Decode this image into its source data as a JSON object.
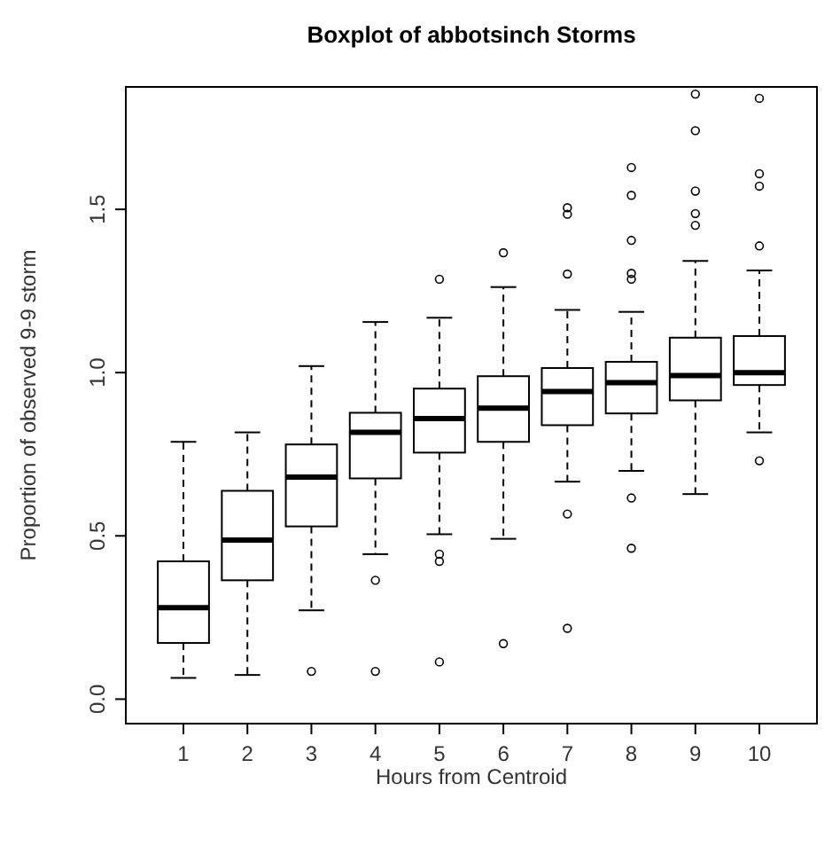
{
  "chart_data": {
    "type": "box",
    "title": "Boxplot of abbotsinch Storms",
    "xlabel": "Hours from Centroid",
    "ylabel": "Proportion of observed 9-9 storm",
    "categories": [
      "1",
      "2",
      "3",
      "4",
      "5",
      "6",
      "7",
      "8",
      "9",
      "10"
    ],
    "ylim": [
      -0.075,
      1.875
    ],
    "yticks": [
      {
        "value": 0,
        "label": "0.0"
      },
      0.5,
      {
        "value": 1,
        "label": "1.0"
      },
      1.5
    ],
    "grid": false,
    "boxes": [
      {
        "low": 0.065,
        "q1": 0.172,
        "median": 0.28,
        "q3": 0.422,
        "high": 0.788
      },
      {
        "low": 0.074,
        "q1": 0.364,
        "median": 0.487,
        "q3": 0.638,
        "high": 0.817
      },
      {
        "low": 0.272,
        "q1": 0.529,
        "median": 0.68,
        "q3": 0.78,
        "high": 1.02,
        "outliers": [
          0.085
        ]
      },
      {
        "low": 0.444,
        "q1": 0.676,
        "median": 0.817,
        "q3": 0.877,
        "high": 1.155,
        "outliers": [
          0.364,
          0.085
        ]
      },
      {
        "low": 0.505,
        "q1": 0.755,
        "median": 0.859,
        "q3": 0.951,
        "high": 1.168,
        "outliers": [
          1.286,
          0.444,
          0.422,
          0.114
        ]
      },
      {
        "low": 0.491,
        "q1": 0.788,
        "median": 0.891,
        "q3": 0.989,
        "high": 1.262,
        "outliers": [
          1.367,
          0.17
        ]
      },
      {
        "low": 0.666,
        "q1": 0.839,
        "median": 0.942,
        "q3": 1.014,
        "high": 1.192,
        "outliers": [
          1.505,
          1.485,
          1.302,
          0.567,
          0.217
        ]
      },
      {
        "low": 0.699,
        "q1": 0.875,
        "median": 0.969,
        "q3": 1.033,
        "high": 1.186,
        "outliers": [
          1.628,
          1.543,
          1.405,
          1.304,
          1.286,
          0.616,
          0.462
        ]
      },
      {
        "low": 0.628,
        "q1": 0.915,
        "median": 0.991,
        "q3": 1.107,
        "high": 1.342,
        "outliers": [
          1.853,
          1.741,
          1.556,
          1.487,
          1.451
        ]
      },
      {
        "low": 0.817,
        "q1": 0.962,
        "median": 1.0,
        "q3": 1.112,
        "high": 1.313,
        "outliers": [
          1.84,
          1.609,
          1.571,
          1.388,
          0.73
        ]
      }
    ]
  }
}
